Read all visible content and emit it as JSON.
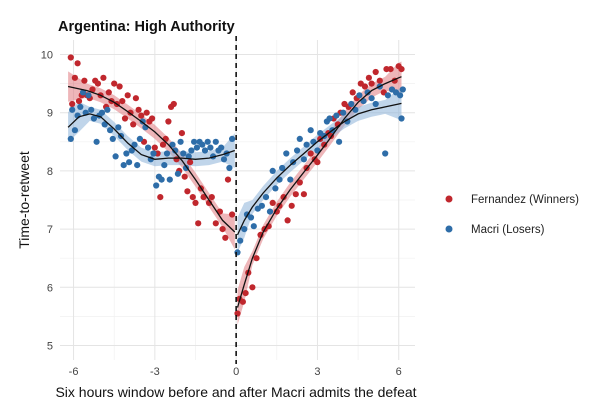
{
  "chart_data": {
    "type": "scatter",
    "title": "Argentina: High Authority",
    "xlabel": "Six hours window before and after Macri admits the defeat",
    "ylabel": "Time-to-retweet",
    "xlim": [
      -6.5,
      6.6
    ],
    "ylim": [
      4.75,
      10.25
    ],
    "xticks": [
      -6,
      -3,
      0,
      3,
      6
    ],
    "xtick_labels": [
      "-6",
      "-3",
      "0",
      "3",
      "6"
    ],
    "yticks": [
      5,
      6,
      7,
      8,
      9,
      10
    ],
    "ytick_labels": [
      "5",
      "6",
      "7",
      "8",
      "9",
      "10"
    ],
    "grid": true,
    "vline": {
      "x": 0,
      "style": "dashed"
    },
    "legend": {
      "placement": "right"
    },
    "series": [
      {
        "name": "Fernandez (Winners)",
        "color": "#c0272d",
        "band_color": "#e07a80",
        "points": [
          [
            -6.1,
            9.95
          ],
          [
            -6.05,
            9.15
          ],
          [
            -5.95,
            9.6
          ],
          [
            -5.85,
            9.85
          ],
          [
            -5.8,
            9.2
          ],
          [
            -5.7,
            9.3
          ],
          [
            -5.6,
            9.55
          ],
          [
            -5.5,
            9.3
          ],
          [
            -5.4,
            9.25
          ],
          [
            -5.3,
            9.4
          ],
          [
            -5.2,
            9.55
          ],
          [
            -5.1,
            9.5
          ],
          [
            -5.0,
            9.3
          ],
          [
            -4.9,
            9.6
          ],
          [
            -4.8,
            9.1
          ],
          [
            -4.7,
            9.35
          ],
          [
            -4.6,
            9.2
          ],
          [
            -4.5,
            9.5
          ],
          [
            -4.4,
            9.15
          ],
          [
            -4.3,
            9.45
          ],
          [
            -4.2,
            9.2
          ],
          [
            -4.1,
            8.9
          ],
          [
            -4.0,
            9.3
          ],
          [
            -3.9,
            9.0
          ],
          [
            -3.8,
            8.8
          ],
          [
            -3.7,
            9.25
          ],
          [
            -3.6,
            9.05
          ],
          [
            -3.5,
            8.95
          ],
          [
            -3.4,
            8.5
          ],
          [
            -3.3,
            9.0
          ],
          [
            -3.2,
            8.85
          ],
          [
            -3.1,
            8.9
          ],
          [
            -3.0,
            8.4
          ],
          [
            -2.9,
            8.3
          ],
          [
            -2.8,
            7.55
          ],
          [
            -2.7,
            8.45
          ],
          [
            -2.6,
            8.55
          ],
          [
            -2.5,
            8.85
          ],
          [
            -2.4,
            9.1
          ],
          [
            -2.3,
            9.15
          ],
          [
            -2.2,
            8.2
          ],
          [
            -2.1,
            8.0
          ],
          [
            -2.0,
            8.65
          ],
          [
            -1.9,
            7.9
          ],
          [
            -1.8,
            7.65
          ],
          [
            -1.7,
            8.15
          ],
          [
            -1.6,
            7.55
          ],
          [
            -1.5,
            7.45
          ],
          [
            -1.4,
            7.1
          ],
          [
            -1.3,
            7.7
          ],
          [
            -1.2,
            7.55
          ],
          [
            -1.0,
            7.45
          ],
          [
            -0.9,
            7.55
          ],
          [
            -0.75,
            7.1
          ],
          [
            -0.6,
            7.3
          ],
          [
            -0.5,
            7.0
          ],
          [
            -0.4,
            6.85
          ],
          [
            -0.3,
            7.85
          ],
          [
            -0.15,
            7.25
          ],
          [
            0.05,
            5.55
          ],
          [
            0.12,
            5.8
          ],
          [
            0.25,
            5.75
          ],
          [
            0.35,
            5.9
          ],
          [
            0.45,
            6.25
          ],
          [
            0.6,
            6.0
          ],
          [
            0.75,
            6.5
          ],
          [
            0.9,
            6.9
          ],
          [
            1.05,
            7.0
          ],
          [
            1.2,
            7.05
          ],
          [
            1.35,
            7.45
          ],
          [
            1.5,
            7.3
          ],
          [
            1.6,
            7.4
          ],
          [
            1.75,
            7.55
          ],
          [
            1.9,
            7.15
          ],
          [
            2.05,
            7.4
          ],
          [
            2.2,
            7.6
          ],
          [
            2.35,
            7.8
          ],
          [
            2.5,
            7.6
          ],
          [
            2.6,
            8.05
          ],
          [
            2.75,
            8.3
          ],
          [
            2.9,
            8.2
          ],
          [
            3.0,
            8.15
          ],
          [
            3.1,
            8.55
          ],
          [
            3.25,
            8.45
          ],
          [
            3.4,
            8.65
          ],
          [
            3.5,
            8.6
          ],
          [
            3.6,
            8.9
          ],
          [
            3.75,
            8.8
          ],
          [
            3.85,
            9.0
          ],
          [
            4.0,
            9.15
          ],
          [
            4.15,
            9.1
          ],
          [
            4.3,
            9.35
          ],
          [
            4.45,
            9.25
          ],
          [
            4.6,
            9.5
          ],
          [
            4.75,
            9.45
          ],
          [
            4.9,
            9.6
          ],
          [
            5.0,
            9.5
          ],
          [
            5.15,
            9.7
          ],
          [
            5.3,
            9.55
          ],
          [
            5.45,
            9.35
          ],
          [
            5.55,
            9.75
          ],
          [
            5.7,
            9.75
          ],
          [
            5.85,
            9.55
          ],
          [
            6.0,
            9.8
          ],
          [
            6.1,
            9.75
          ]
        ],
        "fit": [
          [
            -6.2,
            9.45
          ],
          [
            -5.5,
            9.38
          ],
          [
            -5.0,
            9.3
          ],
          [
            -4.5,
            9.18
          ],
          [
            -4.0,
            9.02
          ],
          [
            -3.5,
            8.85
          ],
          [
            -3.0,
            8.67
          ],
          [
            -2.5,
            8.45
          ],
          [
            -2.0,
            8.18
          ],
          [
            -1.5,
            7.85
          ],
          [
            -1.0,
            7.5
          ],
          [
            -0.5,
            7.15
          ],
          [
            -0.05,
            6.95
          ]
        ],
        "fit_after": [
          [
            0.05,
            5.65
          ],
          [
            0.3,
            6.05
          ],
          [
            0.6,
            6.5
          ],
          [
            1.0,
            6.95
          ],
          [
            1.5,
            7.35
          ],
          [
            2.0,
            7.68
          ],
          [
            2.5,
            7.98
          ],
          [
            3.0,
            8.27
          ],
          [
            3.5,
            8.58
          ],
          [
            4.0,
            8.9
          ],
          [
            4.5,
            9.18
          ],
          [
            5.0,
            9.38
          ],
          [
            5.5,
            9.5
          ],
          [
            6.0,
            9.6
          ],
          [
            6.1,
            9.62
          ]
        ]
      },
      {
        "name": "Macri (Losers)",
        "color": "#2e6da8",
        "band_color": "#8db3d8",
        "points": [
          [
            -6.1,
            8.55
          ],
          [
            -6.05,
            9.05
          ],
          [
            -5.95,
            8.7
          ],
          [
            -5.85,
            8.95
          ],
          [
            -5.75,
            9.1
          ],
          [
            -5.65,
            9.35
          ],
          [
            -5.55,
            9.0
          ],
          [
            -5.45,
            9.3
          ],
          [
            -5.35,
            9.05
          ],
          [
            -5.25,
            8.9
          ],
          [
            -5.15,
            8.5
          ],
          [
            -5.05,
            8.95
          ],
          [
            -4.95,
            9.0
          ],
          [
            -4.85,
            8.8
          ],
          [
            -4.75,
            9.05
          ],
          [
            -4.65,
            8.7
          ],
          [
            -4.55,
            8.55
          ],
          [
            -4.45,
            8.25
          ],
          [
            -4.35,
            8.75
          ],
          [
            -4.25,
            8.6
          ],
          [
            -4.15,
            8.1
          ],
          [
            -4.05,
            8.3
          ],
          [
            -3.95,
            8.15
          ],
          [
            -3.85,
            8.35
          ],
          [
            -3.75,
            8.45
          ],
          [
            -3.65,
            8.1
          ],
          [
            -3.55,
            8.55
          ],
          [
            -3.45,
            8.85
          ],
          [
            -3.35,
            8.75
          ],
          [
            -3.25,
            8.4
          ],
          [
            -3.15,
            8.2
          ],
          [
            -3.05,
            8.3
          ],
          [
            -2.95,
            7.75
          ],
          [
            -2.85,
            7.9
          ],
          [
            -2.75,
            7.85
          ],
          [
            -2.65,
            8.1
          ],
          [
            -2.55,
            8.3
          ],
          [
            -2.45,
            7.85
          ],
          [
            -2.35,
            8.45
          ],
          [
            -2.25,
            8.35
          ],
          [
            -2.15,
            7.95
          ],
          [
            -2.05,
            8.5
          ],
          [
            -1.95,
            8.3
          ],
          [
            -1.85,
            8.05
          ],
          [
            -1.75,
            8.25
          ],
          [
            -1.65,
            8.35
          ],
          [
            -1.55,
            8.5
          ],
          [
            -1.45,
            8.4
          ],
          [
            -1.35,
            8.5
          ],
          [
            -1.25,
            8.45
          ],
          [
            -1.15,
            8.35
          ],
          [
            -1.05,
            8.5
          ],
          [
            -0.95,
            8.4
          ],
          [
            -0.85,
            8.25
          ],
          [
            -0.75,
            8.5
          ],
          [
            -0.65,
            8.35
          ],
          [
            -0.55,
            8.4
          ],
          [
            -0.45,
            8.2
          ],
          [
            -0.35,
            8.3
          ],
          [
            -0.25,
            8.05
          ],
          [
            -0.15,
            8.55
          ],
          [
            0.05,
            6.6
          ],
          [
            0.15,
            6.8
          ],
          [
            0.3,
            7.0
          ],
          [
            0.4,
            7.25
          ],
          [
            0.55,
            7.2
          ],
          [
            0.65,
            7.05
          ],
          [
            0.8,
            7.35
          ],
          [
            0.95,
            7.4
          ],
          [
            1.1,
            7.55
          ],
          [
            1.25,
            7.3
          ],
          [
            1.35,
            8.0
          ],
          [
            1.45,
            7.7
          ],
          [
            1.6,
            7.85
          ],
          [
            1.7,
            8.05
          ],
          [
            1.85,
            8.3
          ],
          [
            2.0,
            7.85
          ],
          [
            2.1,
            8.15
          ],
          [
            2.25,
            8.35
          ],
          [
            2.35,
            8.55
          ],
          [
            2.5,
            8.2
          ],
          [
            2.6,
            8.45
          ],
          [
            2.75,
            8.7
          ],
          [
            2.85,
            8.5
          ],
          [
            3.0,
            8.35
          ],
          [
            3.1,
            8.65
          ],
          [
            3.25,
            8.6
          ],
          [
            3.35,
            8.85
          ],
          [
            3.45,
            8.9
          ],
          [
            3.55,
            8.7
          ],
          [
            3.7,
            8.95
          ],
          [
            3.8,
            8.5
          ],
          [
            3.95,
            9.0
          ],
          [
            4.1,
            8.85
          ],
          [
            4.25,
            9.15
          ],
          [
            4.4,
            9.05
          ],
          [
            4.55,
            9.3
          ],
          [
            4.7,
            9.2
          ],
          [
            4.85,
            9.35
          ],
          [
            5.0,
            9.25
          ],
          [
            5.15,
            9.15
          ],
          [
            5.3,
            9.45
          ],
          [
            5.5,
            8.3
          ],
          [
            5.6,
            9.3
          ],
          [
            5.75,
            9.4
          ],
          [
            5.9,
            9.35
          ],
          [
            6.05,
            9.3
          ],
          [
            6.1,
            8.9
          ],
          [
            6.15,
            9.4
          ]
        ],
        "fit": [
          [
            -6.2,
            8.75
          ],
          [
            -5.8,
            8.93
          ],
          [
            -5.4,
            8.98
          ],
          [
            -5.0,
            8.93
          ],
          [
            -4.5,
            8.72
          ],
          [
            -4.0,
            8.48
          ],
          [
            -3.5,
            8.28
          ],
          [
            -3.0,
            8.2
          ],
          [
            -2.5,
            8.22
          ],
          [
            -2.0,
            8.22
          ],
          [
            -1.5,
            8.2
          ],
          [
            -1.0,
            8.22
          ],
          [
            -0.5,
            8.28
          ],
          [
            -0.05,
            8.35
          ]
        ],
        "fit_after": [
          [
            0.05,
            6.9
          ],
          [
            0.3,
            7.15
          ],
          [
            0.6,
            7.38
          ],
          [
            1.0,
            7.62
          ],
          [
            1.5,
            7.88
          ],
          [
            2.0,
            8.1
          ],
          [
            2.5,
            8.3
          ],
          [
            3.0,
            8.5
          ],
          [
            3.5,
            8.68
          ],
          [
            4.0,
            8.85
          ],
          [
            4.5,
            8.98
          ],
          [
            5.0,
            9.05
          ],
          [
            5.5,
            9.1
          ],
          [
            6.0,
            9.15
          ],
          [
            6.1,
            9.16
          ]
        ]
      }
    ]
  }
}
